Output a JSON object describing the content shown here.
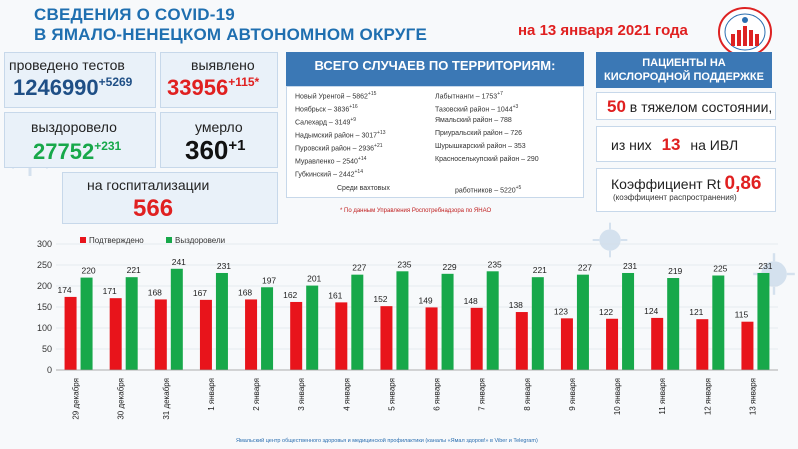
{
  "header": {
    "title_line1": "СВЕДЕНИЯ О COVID-19",
    "title_line2": "В ЯМАЛО-НЕНЕЦКОМ АВТОНОМНОМ ОКРУГЕ",
    "date": "на 13 января 2021 года"
  },
  "stats": {
    "tests_label": "проведено тестов",
    "tests_value": "1246990",
    "tests_delta": "+5269",
    "detected_label": "выявлено",
    "detected_value": "33956",
    "detected_delta": "+115*",
    "recovered_label": "выздоровело",
    "recovered_value": "27752",
    "recovered_delta": "+231",
    "died_label": "умерло",
    "died_value": "360",
    "died_delta": "+1",
    "hospital_label": "на госпитализации",
    "hospital_value": "566"
  },
  "territories": {
    "heading": "ВСЕГО СЛУЧАЕВ ПО ТЕРРИТОРИЯМ:",
    "left": [
      {
        "name": "Новый Уренгой – ",
        "value": "5862",
        "delta": "+15"
      },
      {
        "name": "Ноябрьск – ",
        "value": "3836",
        "delta": "+16"
      },
      {
        "name": "Салехард – ",
        "value": "3149",
        "delta": "+9"
      },
      {
        "name": "Надымский район – ",
        "value": "3017",
        "delta": "+13"
      },
      {
        "name": "Пуровский район – ",
        "value": "2936",
        "delta": "+21"
      },
      {
        "name": "Муравленко – ",
        "value": "2540",
        "delta": "+14"
      },
      {
        "name": "Губкинский – ",
        "value": "2442",
        "delta": "+14"
      }
    ],
    "right": [
      {
        "name": "Лабытнанги – ",
        "value": "1753",
        "delta": "+7"
      },
      {
        "name": "Тазовский район – ",
        "value": "1044",
        "delta": "+3"
      },
      {
        "name": "Ямальский район – ",
        "value": "788",
        "delta": ""
      },
      {
        "name": "Приуральский район – ",
        "value": "726",
        "delta": ""
      },
      {
        "name": "Шурышкарский район – ",
        "value": "353",
        "delta": ""
      },
      {
        "name": "Красноселькупский район – ",
        "value": "290",
        "delta": ""
      }
    ],
    "shift_label": "Среди вахтовых",
    "shift_label2": "работников – ",
    "shift_value": "5220",
    "shift_delta": "+5",
    "footnote": "* По данным Управления  Роспотребнадзора по ЯНАО"
  },
  "oxygen": {
    "heading_line1": "ПАЦИЕНТЫ НА",
    "heading_line2": "КИСЛОРОДНОЙ ПОДДЕРЖКЕ",
    "severe_value": "50",
    "severe_label": " в тяжелом состоянии,",
    "ivl_prefix": "из них ",
    "ivl_value": "13",
    "ivl_suffix": " на  ИВЛ",
    "rt_label": "Коэффициент Rt ",
    "rt_value": "0,86",
    "rt_sub": "(коэффициент распространения)"
  },
  "credit": "Ямальский центр общественного здоровья и медицинской профилактики (каналы «Ямал здоров!» в Viber и Telegram)",
  "chart_data": {
    "type": "bar",
    "categories": [
      "29 декабря",
      "30 декабря",
      "31 декабря",
      "1 января",
      "2 января",
      "3 января",
      "4 января",
      "5 января",
      "6 января",
      "7 января",
      "8 января",
      "9 января",
      "10 января",
      "11 января",
      "12 января",
      "13 января"
    ],
    "series": [
      {
        "name": "Подтверждено",
        "color": "#e8141b",
        "values": [
          174,
          171,
          168,
          167,
          168,
          162,
          161,
          152,
          149,
          148,
          138,
          123,
          122,
          124,
          121,
          115
        ]
      },
      {
        "name": "Выздоровели",
        "color": "#17a84a",
        "values": [
          220,
          221,
          241,
          231,
          197,
          201,
          227,
          235,
          229,
          235,
          221,
          227,
          231,
          219,
          225,
          231
        ]
      }
    ],
    "yticks": [
      "0",
      "50",
      "100",
      "150",
      "200",
      "250",
      "300"
    ],
    "ylim": [
      0,
      300
    ],
    "legend_position": "top-left"
  }
}
